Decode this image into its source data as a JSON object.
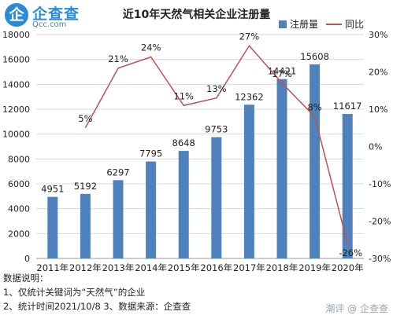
{
  "logo": {
    "mark": "企",
    "name": "企查查",
    "domain": "Qcc.com",
    "icon": "qcc-logo-icon"
  },
  "legend": {
    "bar_label": "注册量",
    "line_label": "同比"
  },
  "notes": {
    "heading": "数据说明：",
    "line1": "1、仅统计关键词为“天然气”的企业",
    "line2": "2、统计时间2021/10/8   3、数据来源：企查查"
  },
  "watermark": "潮评  @ 企查查",
  "colors": {
    "bar": "#4f81bd",
    "line": "#c0504d",
    "grid": "#d9d9d9",
    "brand": "#2a8bd8"
  },
  "chart_data": {
    "type": "bar",
    "title": "近10年天然气相关企业注册量",
    "categories": [
      "2011年",
      "2012年",
      "2013年",
      "2014年",
      "2015年",
      "2016年",
      "2017年",
      "2018年",
      "2019年",
      "2020年"
    ],
    "series": [
      {
        "name": "注册量",
        "type": "bar",
        "axis": "left",
        "values": [
          4951,
          5192,
          6297,
          7795,
          8648,
          9753,
          12362,
          14421,
          15608,
          11617
        ]
      },
      {
        "name": "同比",
        "type": "line",
        "axis": "right",
        "values": [
          null,
          5,
          21,
          24,
          11,
          13,
          27,
          17,
          8,
          -26
        ],
        "labels": [
          "",
          "5%",
          "21%",
          "24%",
          "11%",
          "13%",
          "27%",
          "17%",
          "8%",
          "-26%"
        ]
      }
    ],
    "y_left": {
      "min": 0,
      "max": 18000,
      "step": 2000,
      "ticks": [
        "0",
        "2000",
        "4000",
        "6000",
        "8000",
        "10000",
        "12000",
        "14000",
        "16000",
        "18000"
      ]
    },
    "y_right": {
      "min": -30,
      "max": 30,
      "step": 10,
      "ticks": [
        "-30%",
        "-20%",
        "-10%",
        "0%",
        "10%",
        "20%",
        "30%"
      ]
    },
    "grid": true,
    "legend_position": "top-right"
  }
}
